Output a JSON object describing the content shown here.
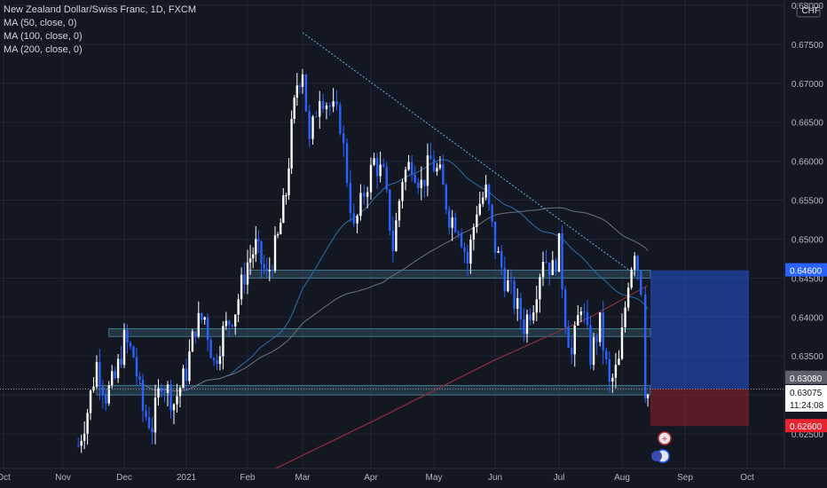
{
  "chart_data": {
    "type": "candlestick",
    "title": "New Zealand Dollar/Swiss Franc, 1D, FXCM",
    "indicators": [
      "MA (50, close, 0)",
      "MA (100, close, 0)",
      "MA (200, close, 0)"
    ],
    "currency": "CHF",
    "x_tick_labels": [
      "Oct",
      "Nov",
      "Dec",
      "2021",
      "Feb",
      "Mar",
      "Apr",
      "May",
      "Jun",
      "Jul",
      "Aug",
      "Sep",
      "Oct"
    ],
    "y_tick_labels": [
      "0.62500",
      "0.63000",
      "0.63500",
      "0.64000",
      "0.64500",
      "0.65000",
      "0.65500",
      "0.66000",
      "0.66500",
      "0.67000",
      "0.67500",
      "0.68000"
    ],
    "ylim": [
      0.6215,
      0.6805
    ],
    "price_labels": {
      "target": "0.64600",
      "current": "0.63075",
      "countdown": "11:24:08",
      "entry": "0.63080",
      "stop": "0.62600"
    },
    "levels": {
      "target": 0.646,
      "current": 0.63075,
      "entry": 0.6308,
      "stop": 0.626
    },
    "support_resistance_zones": [
      {
        "from": 0.6312,
        "to": 0.63
      },
      {
        "from": 0.6385,
        "to": 0.6375
      },
      {
        "from": 0.646,
        "to": 0.645
      }
    ],
    "trendline": {
      "start": {
        "month_index": 5,
        "price": 0.6765
      },
      "end": {
        "month_index": 10.2,
        "price": 0.6455
      }
    },
    "position": {
      "entry": 0.6308,
      "target": 0.646,
      "stop": 0.626
    },
    "price_path": [
      [
        1.25,
        0.6235
      ],
      [
        1.4,
        0.628
      ],
      [
        1.55,
        0.634
      ],
      [
        1.7,
        0.63
      ],
      [
        1.85,
        0.632
      ],
      [
        2.0,
        0.637
      ],
      [
        2.15,
        0.635
      ],
      [
        2.3,
        0.628
      ],
      [
        2.45,
        0.626
      ],
      [
        2.6,
        0.632
      ],
      [
        2.8,
        0.629
      ],
      [
        3.0,
        0.633
      ],
      [
        3.15,
        0.639
      ],
      [
        3.3,
        0.64
      ],
      [
        3.45,
        0.634
      ],
      [
        3.6,
        0.638
      ],
      [
        3.8,
        0.641
      ],
      [
        4.0,
        0.647
      ],
      [
        4.15,
        0.649
      ],
      [
        4.35,
        0.645
      ],
      [
        4.55,
        0.65
      ],
      [
        4.7,
        0.656
      ],
      [
        4.8,
        0.664
      ],
      [
        4.9,
        0.67
      ],
      [
        5.0,
        0.672
      ],
      [
        5.1,
        0.662
      ],
      [
        5.25,
        0.669
      ],
      [
        5.4,
        0.667
      ],
      [
        5.55,
        0.665
      ],
      [
        5.75,
        0.651
      ],
      [
        5.9,
        0.656
      ],
      [
        6.05,
        0.66
      ],
      [
        6.2,
        0.658
      ],
      [
        6.35,
        0.649
      ],
      [
        6.5,
        0.658
      ],
      [
        6.65,
        0.66
      ],
      [
        6.8,
        0.657
      ],
      [
        6.95,
        0.66
      ],
      [
        7.1,
        0.658
      ],
      [
        7.25,
        0.653
      ],
      [
        7.4,
        0.652
      ],
      [
        7.55,
        0.647
      ],
      [
        7.7,
        0.654
      ],
      [
        7.85,
        0.656
      ],
      [
        8.0,
        0.649
      ],
      [
        8.15,
        0.645
      ],
      [
        8.3,
        0.642
      ],
      [
        8.45,
        0.639
      ],
      [
        8.6,
        0.642
      ],
      [
        8.75,
        0.648
      ],
      [
        8.9,
        0.646
      ],
      [
        9.0,
        0.649
      ],
      [
        9.1,
        0.64
      ],
      [
        9.2,
        0.635
      ],
      [
        9.35,
        0.642
      ],
      [
        9.5,
        0.635
      ],
      [
        9.65,
        0.639
      ],
      [
        9.8,
        0.631
      ],
      [
        9.95,
        0.634
      ],
      [
        10.1,
        0.645
      ],
      [
        10.2,
        0.649
      ],
      [
        10.3,
        0.644
      ],
      [
        10.37,
        0.631
      ],
      [
        10.45,
        0.629
      ]
    ]
  }
}
